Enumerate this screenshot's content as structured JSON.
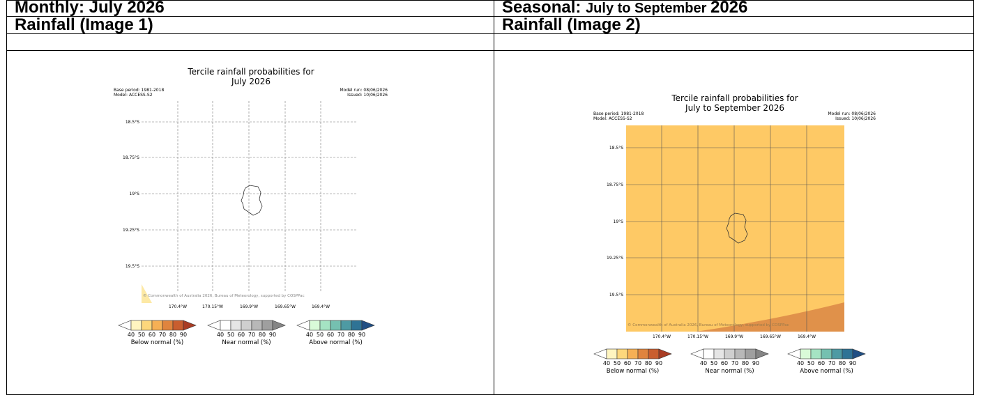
{
  "headers": {
    "left_row1": "Monthly: July 2026",
    "right_row1_prefix": "Seasonal: ",
    "right_row1_rest": "July to September ",
    "right_row1_year": "2026",
    "left_row2": "Rainfall (Image 1)",
    "right_row2": "Rainfall (Image 2)"
  },
  "maps": [
    {
      "title_line1": "Tercile rainfall probabilities for",
      "title_line2": "July 2026",
      "base_period": "Base period: 1981-2018",
      "model": "Model: ACCESS-S2",
      "model_run": "Model run: 08/06/2026",
      "issued": "Issued: 10/06/2026",
      "lat_labels": [
        "18.5°S",
        "18.75°S",
        "19°S",
        "19.25°S",
        "19.5°S"
      ],
      "lon_labels": [
        "170.4°W",
        "170.15°W",
        "169.9°W",
        "169.65°W",
        "169.4°W"
      ],
      "copyright": "© Commonwealth of Australia 2026, Bureau of Meteorology, supported by COSPPac",
      "fill": "none"
    },
    {
      "title_line1": "Tercile rainfall probabilities for",
      "title_line2": "July to September 2026",
      "base_period": "Base period: 1981-2018",
      "model": "Model: ACCESS-S2",
      "model_run": "Model run: 08/06/2026",
      "issued": "Issued: 10/06/2026",
      "lat_labels": [
        "18.5°S",
        "18.75°S",
        "19°S",
        "19.25°S",
        "19.5°S"
      ],
      "lon_labels": [
        "170.4°W",
        "170.15°W",
        "169.9°W",
        "169.65°W",
        "169.4°W"
      ],
      "copyright": "© Commonwealth of Australia 2026, Bureau of Meteorology, supported by COSPPac",
      "fill": "below-normal 50-60%"
    }
  ],
  "legend": {
    "ticks": [
      "40",
      "50",
      "60",
      "70",
      "80",
      "90"
    ],
    "below_label": "Below normal (%)",
    "near_label": "Near normal (%)",
    "above_label": "Above normal (%)",
    "below_colors": [
      "#fff5c0",
      "#fdd77c",
      "#f6b055",
      "#e0843e",
      "#c95e2f",
      "#a93c23"
    ],
    "near_colors": [
      "#ffffff",
      "#e5e5e5",
      "#cfcfcf",
      "#b8b8b8",
      "#9f9f9f",
      "#858585"
    ],
    "above_colors": [
      "#d9fad8",
      "#a5e3c3",
      "#75c0b0",
      "#4e9aa3",
      "#2f7395",
      "#214f84"
    ]
  },
  "colors": {
    "map2_fill": "#fec965",
    "map2_corner": "#e0914a"
  }
}
